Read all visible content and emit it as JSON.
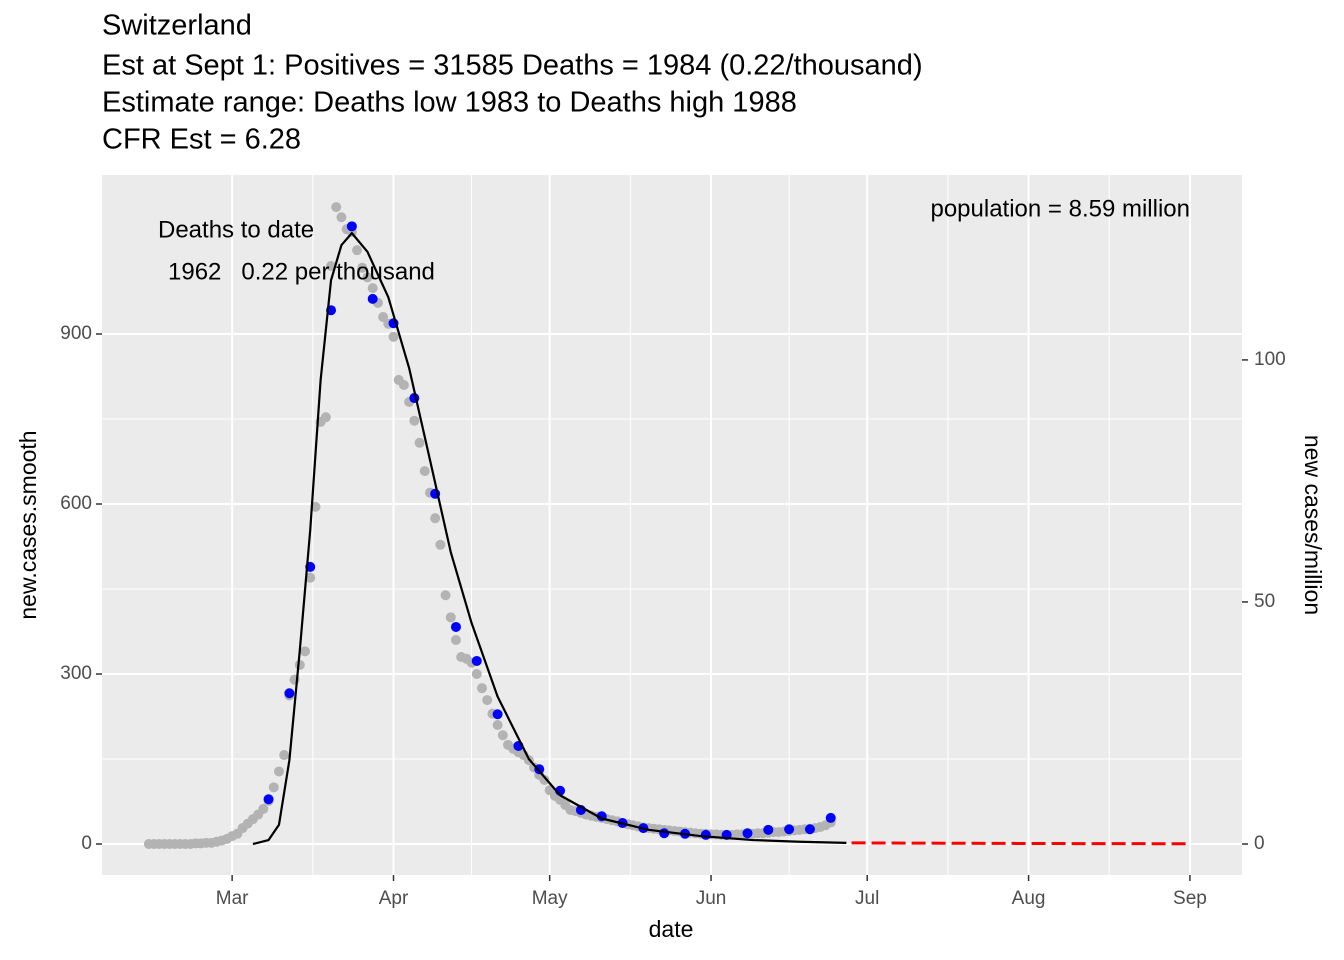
{
  "chart_data": {
    "type": "line",
    "title": "Switzerland",
    "subtitle": [
      "Est at Sept 1: Positives = 31585 Deaths = 1984 (0.22/thousand)",
      "Estimate range: Deaths low 1983 to Deaths high 1988",
      "CFR Est = 6.28"
    ],
    "x_label": "date",
    "y_label": "new.cases.smooth",
    "y2_label": "new cases/million",
    "annotations": [
      "Deaths to date",
      "1962   0.22 per thousand",
      "population = 8.59 million"
    ],
    "xlim": [
      -25,
      194
    ],
    "xticks": [
      {
        "value": 0,
        "label": "Mar"
      },
      {
        "value": 31,
        "label": "Apr"
      },
      {
        "value": 61,
        "label": "May"
      },
      {
        "value": 92,
        "label": "Jun"
      },
      {
        "value": 122,
        "label": "Jul"
      },
      {
        "value": 153,
        "label": "Aug"
      },
      {
        "value": 184,
        "label": "Sep"
      }
    ],
    "ylim": [
      -54.7,
      1180.6
    ],
    "yticks": [
      0,
      300,
      600,
      900
    ],
    "y2lim": [
      -6.4,
      138.2
    ],
    "y2ticks": [
      0,
      50,
      100
    ],
    "grid": true,
    "series": [
      {
        "type": "scatter",
        "color": "#b3b3b3",
        "x": [
          -16,
          -15,
          -14,
          -13,
          -12,
          -11,
          -10,
          -9,
          -8,
          -7,
          -6,
          -5,
          -4,
          -3,
          -2,
          -1,
          0,
          1,
          2,
          3,
          4,
          5,
          6,
          7,
          8,
          9,
          10,
          11,
          12,
          13,
          14,
          15,
          16,
          17,
          18,
          19,
          20,
          21,
          22,
          23,
          24,
          25,
          26,
          27,
          28,
          29,
          30,
          31,
          32,
          33,
          34,
          35,
          36,
          37,
          38,
          39,
          40,
          41,
          42,
          43,
          44,
          45,
          46,
          47,
          48,
          49,
          50,
          51,
          52,
          53,
          54,
          55,
          56,
          57,
          58,
          59,
          60,
          61,
          62,
          63,
          64,
          65,
          66,
          67,
          68,
          69,
          70,
          71,
          72,
          73,
          74,
          75,
          76,
          77,
          78,
          79,
          80,
          81,
          82,
          83,
          84,
          85,
          86,
          87,
          88,
          89,
          90,
          91,
          92,
          93,
          94,
          95,
          96,
          97,
          98,
          99,
          100,
          101,
          102,
          103,
          104,
          105,
          106,
          107,
          108,
          109,
          110,
          111,
          112,
          113,
          114,
          115
        ],
        "values": [
          0,
          0,
          0,
          0,
          0,
          0,
          0,
          0,
          0,
          1,
          1,
          2,
          2,
          4,
          6,
          9,
          14,
          18,
          28,
          36,
          44,
          52,
          62,
          76,
          100,
          128,
          157,
          262,
          290,
          316,
          340,
          470,
          595,
          745,
          753,
          1020,
          1124,
          1106,
          1085,
          1080,
          1048,
          1017,
          1000,
          981,
          955,
          930,
          918,
          895,
          819,
          810,
          780,
          747,
          708,
          658,
          620,
          575,
          528,
          439,
          400,
          360,
          330,
          327,
          320,
          300,
          275,
          254,
          230,
          210,
          192,
          175,
          168,
          162,
          157,
          148,
          135,
          122,
          113,
          95,
          85,
          78,
          69,
          60,
          58,
          55,
          52,
          50,
          48,
          46,
          44,
          42,
          40,
          37,
          35,
          33,
          31,
          29,
          28,
          27,
          26,
          25,
          24,
          23,
          22,
          21,
          20,
          19,
          18,
          18,
          17,
          17,
          16,
          16,
          16,
          17,
          17,
          18,
          18,
          19,
          19,
          20,
          21,
          21,
          22,
          23,
          24,
          25,
          26,
          27,
          28,
          30,
          33,
          38
        ]
      },
      {
        "type": "scatter",
        "color": "#0000ff",
        "x": [
          7,
          11,
          15,
          19,
          23,
          27,
          31,
          35,
          39,
          43,
          47,
          51,
          55,
          59,
          63,
          67,
          71,
          75,
          79,
          83,
          87,
          91,
          95,
          99,
          103,
          107,
          111,
          115
        ],
        "values": [
          79,
          266,
          489,
          942,
          1090,
          962,
          919,
          787,
          618,
          383,
          323,
          229,
          173,
          132,
          94,
          60,
          49,
          37,
          28,
          19,
          18,
          16,
          16,
          19,
          25,
          26,
          26,
          46
        ]
      },
      {
        "type": "line",
        "color": "#000000",
        "x": [
          4,
          7,
          9,
          11,
          13,
          15,
          17,
          19,
          21,
          23,
          26,
          30,
          34,
          38,
          42,
          46,
          51,
          57,
          63,
          71,
          80,
          90,
          100,
          109,
          118
        ],
        "values": [
          0,
          7,
          34,
          148,
          342,
          554,
          819,
          995,
          1057,
          1078,
          1045,
          965,
          840,
          678,
          515,
          390,
          260,
          150,
          86,
          45,
          25,
          14,
          7,
          4,
          2
        ]
      },
      {
        "type": "line",
        "color": "#ff0000",
        "dashed": true,
        "x": [
          119,
          130,
          140,
          150,
          160,
          170,
          184
        ],
        "values": [
          2,
          1.6,
          1.3,
          1,
          0.8,
          0.6,
          0.5
        ]
      }
    ]
  }
}
